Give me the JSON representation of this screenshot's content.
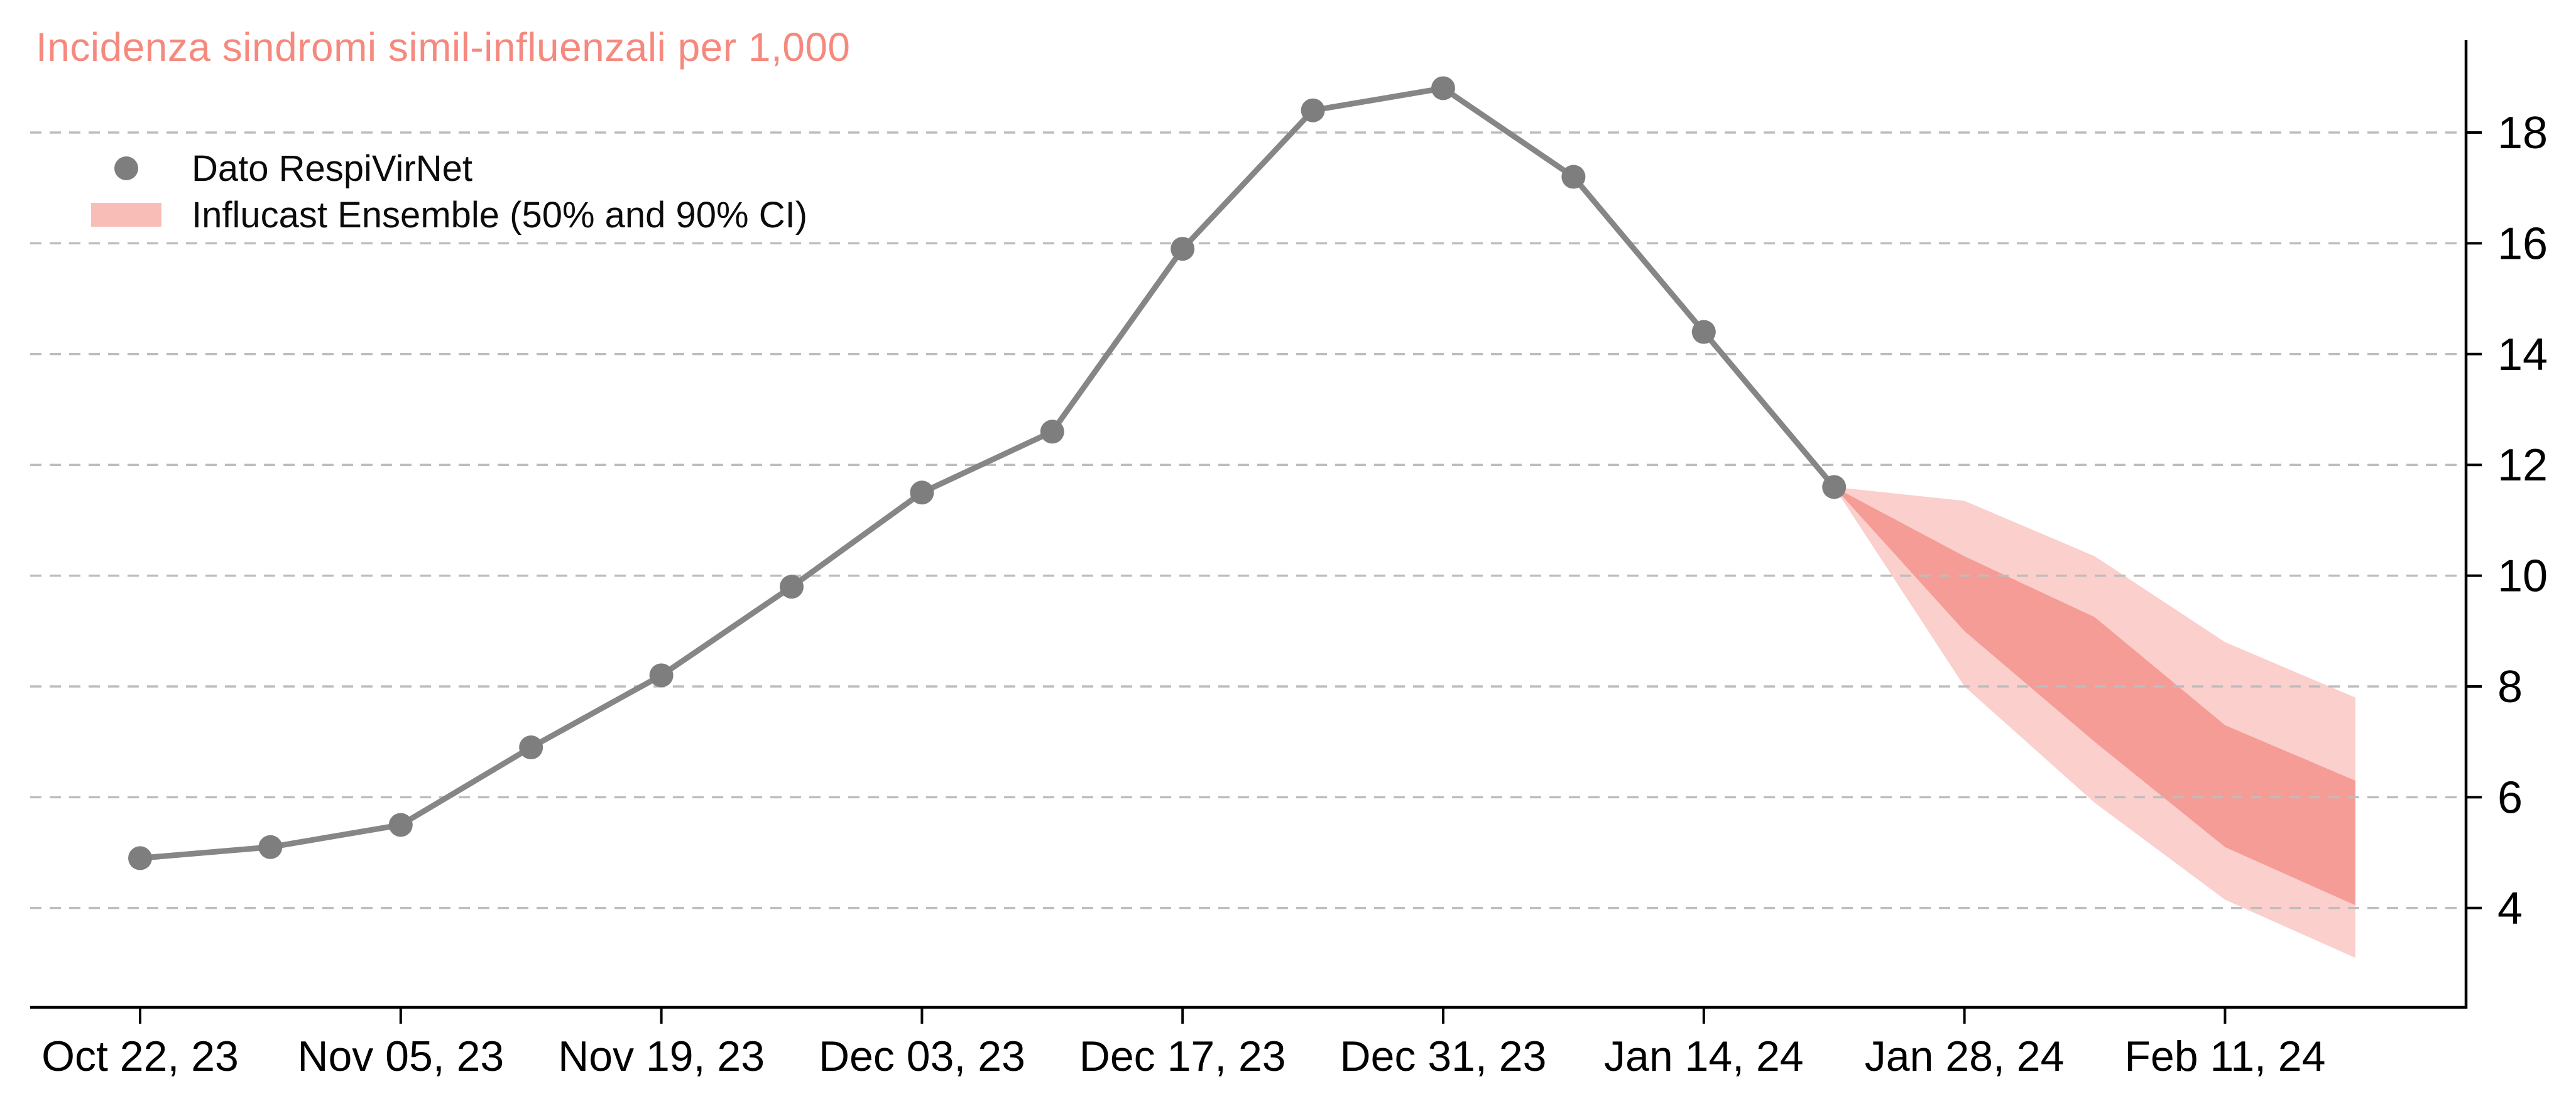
{
  "title": {
    "text": "Incidenza sindromi simil-influenzali per 1,000"
  },
  "legend": {
    "position": "top-left",
    "items": [
      {
        "label": "Dato RespiVirNet",
        "marker": "dot"
      },
      {
        "label": "Influcast Ensemble (50% and 90% CI)",
        "marker": "band-swatch"
      }
    ]
  },
  "colors": {
    "title": "#f6897e",
    "observed_point": "#7e7e7e",
    "observed_line": "#868686",
    "band_50": "#f49c95",
    "band_90": "#facfcc",
    "legend_swatch": "#f9bdb8",
    "gridline": "#bdbdbd",
    "axis": "#000000",
    "tick_label": "#000000"
  },
  "chart_data": {
    "type": "line+fan",
    "title": "Incidenza sindromi simil-influenzali per 1,000",
    "xlabel": "",
    "ylabel": "",
    "grid": "dashed-horizontal",
    "legend_position": "top-left",
    "y_axis_side": "right",
    "y_ticks": [
      18,
      16,
      14,
      12,
      10,
      8,
      6,
      4
    ],
    "y_axis_range": [
      2.3,
      19.6
    ],
    "x_tick_labels": [
      "Oct 22, 23",
      "Nov 05, 23",
      "Nov 19, 23",
      "Dec 03, 23",
      "Dec 17, 23",
      "Dec 31, 23",
      "Jan 14, 24",
      "Jan 28, 24",
      "Feb 11, 24"
    ],
    "observed": {
      "name": "Dato RespiVirNet",
      "dates": [
        "Oct 22, 23",
        "Oct 29, 23",
        "Nov 05, 23",
        "Nov 12, 23",
        "Nov 19, 23",
        "Nov 26, 23",
        "Dec 03, 23",
        "Dec 10, 23",
        "Dec 17, 23",
        "Dec 24, 23",
        "Dec 31, 23",
        "Jan 07, 24",
        "Jan 14, 24",
        "Jan 21, 24"
      ],
      "values": [
        4.9,
        5.1,
        5.5,
        6.9,
        8.2,
        9.8,
        11.5,
        12.6,
        15.9,
        18.4,
        18.8,
        17.2,
        14.4,
        11.6
      ]
    },
    "forecast": {
      "name": "Influcast Ensemble (50% and 90% CI)",
      "dates": [
        "Jan 21, 24",
        "Jan 28, 24",
        "Feb 04, 24",
        "Feb 11, 24",
        "Feb 18, 24"
      ],
      "ci90_upper": [
        11.6,
        11.35,
        10.35,
        8.8,
        7.8
      ],
      "ci50_upper": [
        11.6,
        10.35,
        9.25,
        7.3,
        6.3
      ],
      "ci50_lower": [
        11.6,
        9.0,
        7.0,
        5.1,
        4.05
      ],
      "ci90_lower": [
        11.6,
        8.0,
        5.9,
        4.15,
        3.1
      ]
    }
  }
}
